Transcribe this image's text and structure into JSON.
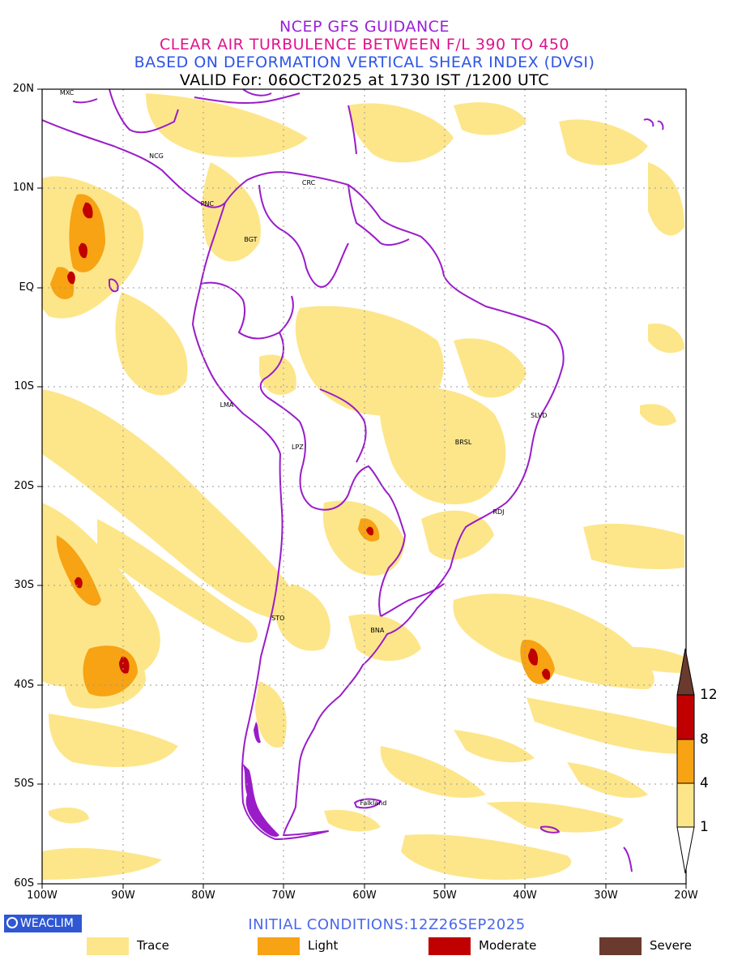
{
  "header": {
    "line1": "NCEP GFS GUIDANCE",
    "line2": "CLEAR AIR TURBULENCE BETWEEN F/L 390 TO 450",
    "line3": "BASED ON DEFORMATION VERTICAL SHEAR INDEX (DVSI)",
    "line4": "VALID For: 06OCT2025 at 1730 IST /1200 UTC",
    "colors": {
      "line1": "#9b1fd8",
      "line2": "#e0148c",
      "line3": "#2e55e6",
      "line4": "#000000"
    }
  },
  "map": {
    "lat_labels": [
      "20N",
      "10N",
      "EQ",
      "10S",
      "20S",
      "30S",
      "40S",
      "50S",
      "60S"
    ],
    "lon_labels": [
      "100W",
      "90W",
      "80W",
      "70W",
      "60W",
      "50W",
      "40W",
      "30W",
      "20W"
    ],
    "cities": [
      {
        "name": "MXC",
        "lon": -97,
        "lat": 19.6
      },
      {
        "name": "NCG",
        "lon": -85.9,
        "lat": 13.2
      },
      {
        "name": "CRC",
        "lon": -66.9,
        "lat": 10.5
      },
      {
        "name": "PNC",
        "lon": -79.5,
        "lat": 8.4
      },
      {
        "name": "BGT",
        "lon": -74.1,
        "lat": 4.8
      },
      {
        "name": "LMA",
        "lon": -77.1,
        "lat": -11.8
      },
      {
        "name": "LPZ",
        "lon": -68.2,
        "lat": -16.1
      },
      {
        "name": "BRSL",
        "lon": -47.9,
        "lat": -15.6
      },
      {
        "name": "SLVD",
        "lon": -38.5,
        "lat": -12.9
      },
      {
        "name": "RDJ",
        "lon": -43.2,
        "lat": -22.6
      },
      {
        "name": "STO",
        "lon": -70.7,
        "lat": -33.3
      },
      {
        "name": "BNA",
        "lon": -58.4,
        "lat": -34.5
      },
      {
        "name": "Falkland",
        "lon": -59.7,
        "lat": -51.9
      }
    ],
    "colors": {
      "trace": "#fde68a",
      "light": "#f7a313",
      "moderate": "#c00000",
      "severe": "#6b3a2f",
      "coast": "#9a1cc9",
      "grid": "#9a9a9a"
    }
  },
  "colorbar": {
    "labels": [
      "1",
      "4",
      "8",
      "12"
    ]
  },
  "footer": {
    "brand": "WEACLIM",
    "initial_conditions": "INITIAL CONDITIONS:12Z26SEP2025",
    "legend": [
      {
        "label": "Trace",
        "color": "#fde68a"
      },
      {
        "label": "Light",
        "color": "#f7a313"
      },
      {
        "label": "Moderate",
        "color": "#c00000"
      },
      {
        "label": "Severe",
        "color": "#6b3a2f"
      }
    ]
  }
}
